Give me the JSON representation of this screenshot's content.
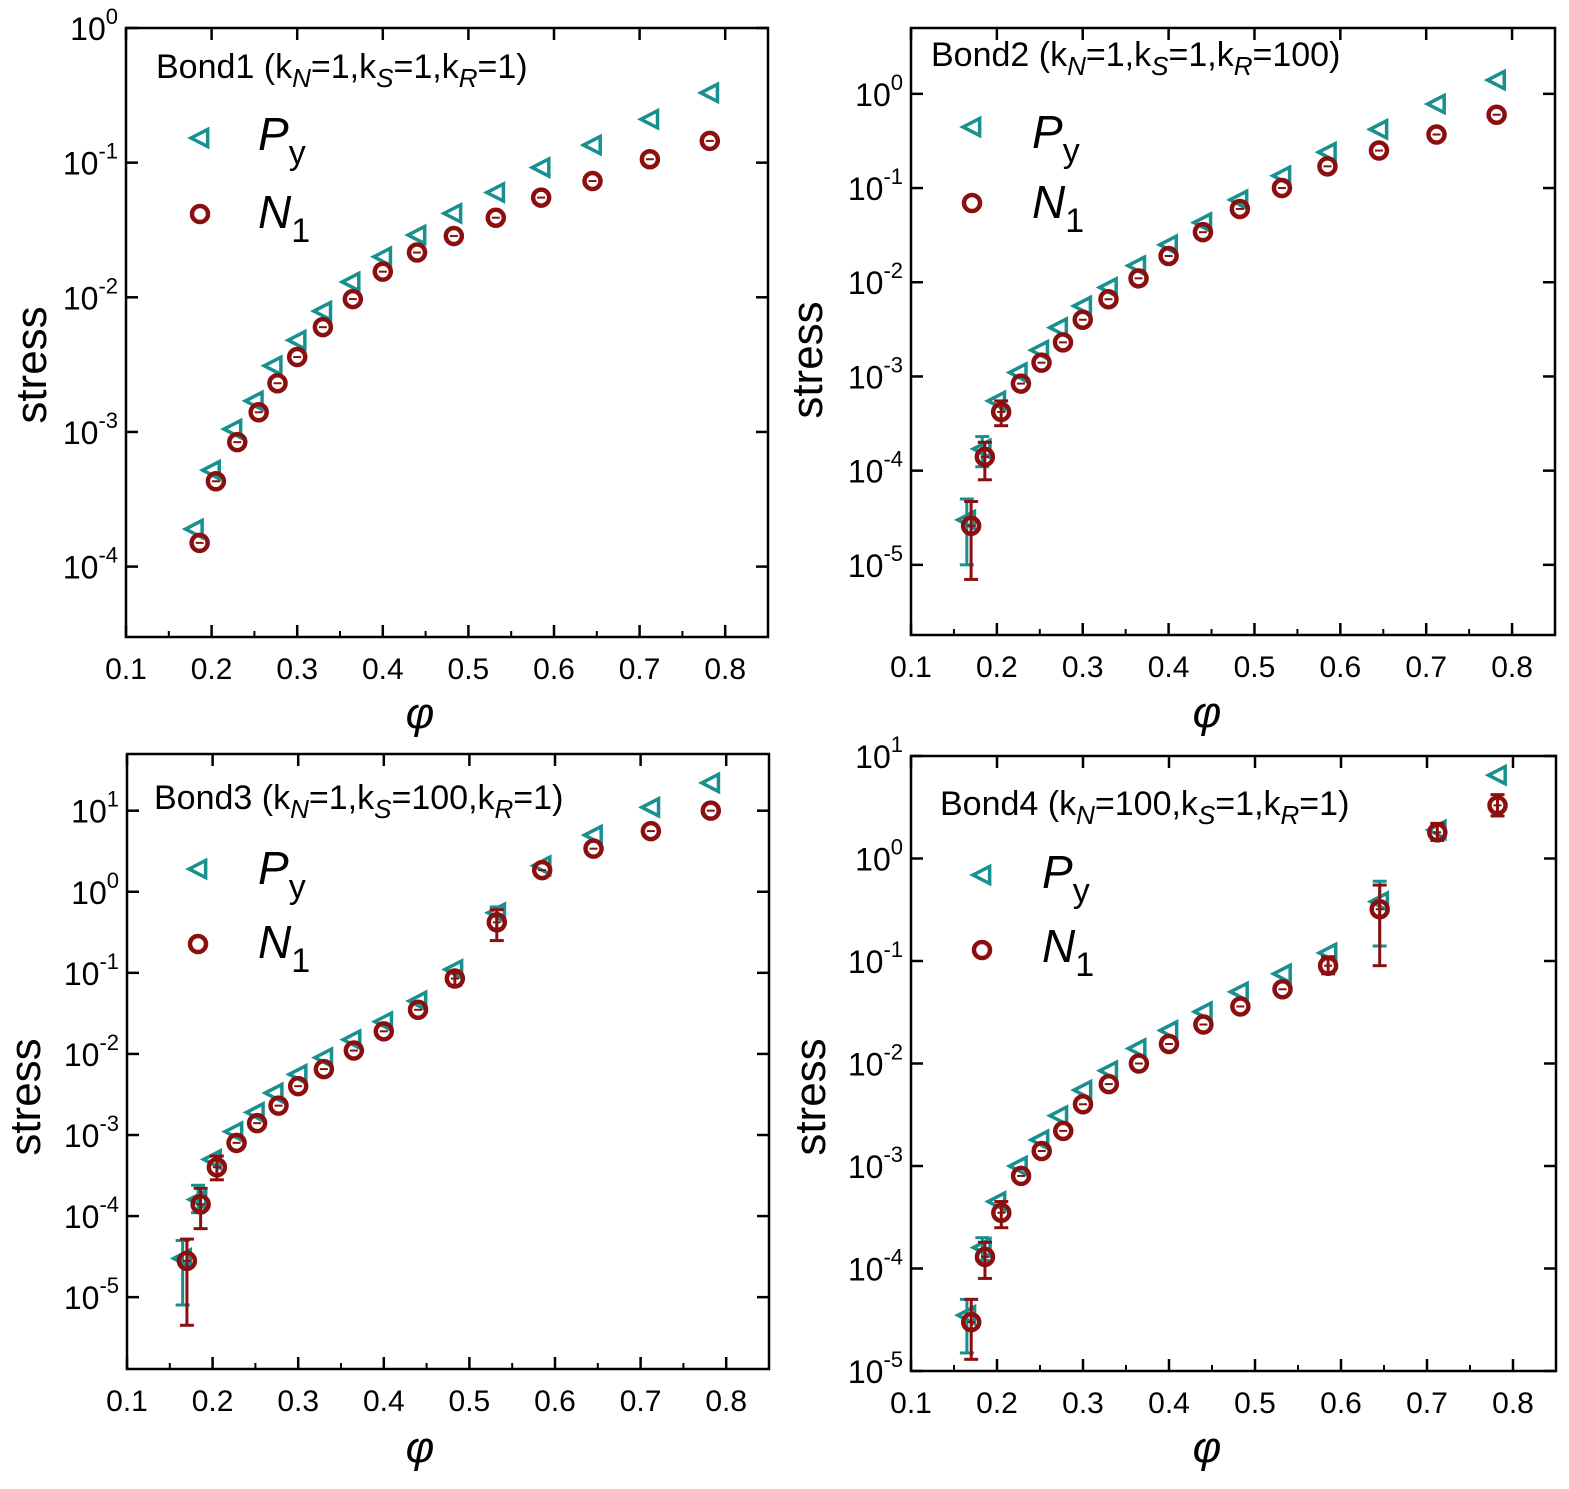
{
  "figure": {
    "colors": {
      "py": "#17908f",
      "n1": "#8b0f0f",
      "axis": "#000000"
    }
  },
  "chart_data": [
    {
      "type": "scatter",
      "id": "bond1",
      "title": "Bond1",
      "params": {
        "kN": "1",
        "kS": "1",
        "kR": "1"
      },
      "xlabel": "φ",
      "ylabel": "stress",
      "yscale": "log",
      "xlim": [
        0.1,
        0.85
      ],
      "ylim": [
        3e-05,
        1
      ],
      "xticks": [
        "0.1",
        "0.2",
        "0.3",
        "0.4",
        "0.5",
        "0.6",
        "0.7",
        "0.8"
      ],
      "yticks_exp": [
        "0",
        "-1",
        "-2",
        "-3",
        "-4"
      ],
      "legend_position": "top-left",
      "series": [
        {
          "name": "P",
          "sub": "y",
          "marker": "left-triangle",
          "x": [
            0.18,
            0.2,
            0.225,
            0.25,
            0.272,
            0.3,
            0.33,
            0.363,
            0.4,
            0.44,
            0.482,
            0.532,
            0.585,
            0.645,
            0.712,
            0.782
          ],
          "y": [
            0.00019,
            0.00052,
            0.00105,
            0.0017,
            0.0031,
            0.0048,
            0.0079,
            0.013,
            0.02,
            0.029,
            0.042,
            0.06,
            0.092,
            0.135,
            0.21,
            0.33
          ],
          "err": []
        },
        {
          "name": "N",
          "sub": "1",
          "marker": "open-circle",
          "x": [
            0.186,
            0.205,
            0.23,
            0.255,
            0.277,
            0.3,
            0.33,
            0.365,
            0.4,
            0.44,
            0.483,
            0.532,
            0.585,
            0.645,
            0.712,
            0.782
          ],
          "y": [
            0.00015,
            0.00043,
            0.00084,
            0.0014,
            0.0023,
            0.0036,
            0.006,
            0.0097,
            0.0155,
            0.0215,
            0.0285,
            0.039,
            0.055,
            0.073,
            0.106,
            0.145
          ],
          "err": []
        }
      ]
    },
    {
      "type": "scatter",
      "id": "bond2",
      "title": "Bond2",
      "params": {
        "kN": "1",
        "kS": "1",
        "kR": "100"
      },
      "xlabel": "φ",
      "ylabel": "stress",
      "yscale": "log",
      "xlim": [
        0.1,
        0.85
      ],
      "ylim": [
        1.8e-06,
        5
      ],
      "xticks": [
        "0.1",
        "0.2",
        "0.3",
        "0.4",
        "0.5",
        "0.6",
        "0.7",
        "0.8"
      ],
      "yticks_exp": [
        "0",
        "-1",
        "-2",
        "-3",
        "-4",
        "-5"
      ],
      "legend_position": "top-left",
      "series": [
        {
          "name": "P",
          "sub": "y",
          "marker": "left-triangle",
          "x": [
            0.165,
            0.183,
            0.2,
            0.225,
            0.25,
            0.272,
            0.3,
            0.33,
            0.363,
            0.4,
            0.44,
            0.482,
            0.532,
            0.585,
            0.645,
            0.712,
            0.782
          ],
          "y": [
            3e-05,
            0.00017,
            0.00055,
            0.0011,
            0.0019,
            0.0033,
            0.0056,
            0.0088,
            0.015,
            0.025,
            0.043,
            0.075,
            0.135,
            0.24,
            0.42,
            0.78,
            1.4
          ],
          "err": [
            [
              1e-05,
              5e-05
            ],
            [
              0.00011,
              0.00023
            ],
            null,
            null,
            null,
            null,
            null,
            null,
            null,
            null,
            null,
            null,
            null,
            null,
            null,
            null,
            null
          ]
        },
        {
          "name": "N",
          "sub": "1",
          "marker": "open-circle",
          "x": [
            0.17,
            0.186,
            0.205,
            0.228,
            0.252,
            0.277,
            0.3,
            0.33,
            0.365,
            0.4,
            0.44,
            0.483,
            0.532,
            0.585,
            0.645,
            0.712,
            0.782
          ],
          "y": [
            2.6e-05,
            0.00014,
            0.00042,
            0.00084,
            0.0014,
            0.0023,
            0.004,
            0.0066,
            0.011,
            0.019,
            0.034,
            0.06,
            0.1,
            0.17,
            0.25,
            0.37,
            0.6
          ],
          "err": [
            [
              7e-06,
              4.7e-05
            ],
            [
              8e-05,
              0.0002
            ],
            [
              0.0003,
              0.00055
            ],
            null,
            null,
            null,
            null,
            null,
            null,
            null,
            null,
            null,
            null,
            null,
            null,
            null,
            null
          ]
        }
      ]
    },
    {
      "type": "scatter",
      "id": "bond3",
      "title": "Bond3",
      "params": {
        "kN": "1",
        "kS": "100",
        "kR": "1"
      },
      "xlabel": "φ",
      "ylabel": "stress",
      "yscale": "log",
      "xlim": [
        0.1,
        0.85
      ],
      "ylim": [
        1.3e-06,
        50
      ],
      "xticks": [
        "0.1",
        "0.2",
        "0.3",
        "0.4",
        "0.5",
        "0.6",
        "0.7",
        "0.8"
      ],
      "yticks_exp": [
        "1",
        "0",
        "-1",
        "-2",
        "-3",
        "-4",
        "-5"
      ],
      "legend_position": "top-left",
      "series": [
        {
          "name": "P",
          "sub": "y",
          "marker": "left-triangle",
          "x": [
            0.165,
            0.183,
            0.2,
            0.225,
            0.25,
            0.272,
            0.3,
            0.33,
            0.363,
            0.4,
            0.44,
            0.482,
            0.532,
            0.585,
            0.645,
            0.712,
            0.782
          ],
          "y": [
            3e-05,
            0.00016,
            0.0005,
            0.0011,
            0.0019,
            0.0033,
            0.0056,
            0.009,
            0.015,
            0.025,
            0.045,
            0.11,
            0.55,
            2.1,
            5.0,
            11,
            22
          ],
          "err": [
            [
              8e-06,
              5e-05
            ],
            [
              0.00011,
              0.00024
            ],
            null,
            null,
            null,
            null,
            null,
            null,
            null,
            null,
            null,
            null,
            [
              0.35,
              0.65
            ],
            null,
            null,
            null,
            null
          ]
        },
        {
          "name": "N",
          "sub": "1",
          "marker": "open-circle",
          "x": [
            0.17,
            0.186,
            0.205,
            0.228,
            0.252,
            0.277,
            0.3,
            0.33,
            0.365,
            0.4,
            0.44,
            0.483,
            0.532,
            0.585,
            0.645,
            0.712,
            0.782
          ],
          "y": [
            2.8e-05,
            0.00014,
            0.0004,
            0.0008,
            0.0014,
            0.0023,
            0.004,
            0.0065,
            0.011,
            0.019,
            0.035,
            0.085,
            0.42,
            1.85,
            3.4,
            5.6,
            10
          ],
          "err": [
            [
              4.5e-06,
              5.2e-05
            ],
            [
              7e-05,
              0.00022
            ],
            [
              0.00028,
              0.00055
            ],
            null,
            null,
            null,
            null,
            null,
            null,
            null,
            null,
            [
              0.07,
              0.1
            ],
            [
              0.25,
              0.6
            ],
            null,
            null,
            null,
            null
          ]
        }
      ]
    },
    {
      "type": "scatter",
      "id": "bond4",
      "title": "Bond4",
      "params": {
        "kN": "100",
        "kS": "1",
        "kR": "1"
      },
      "xlabel": "φ",
      "ylabel": "stress",
      "yscale": "log",
      "xlim": [
        0.1,
        0.85
      ],
      "ylim": [
        1e-05,
        10
      ],
      "xticks": [
        "0.1",
        "0.2",
        "0.3",
        "0.4",
        "0.5",
        "0.6",
        "0.7",
        "0.8"
      ],
      "yticks_exp": [
        "1",
        "0",
        "-1",
        "-2",
        "-3",
        "-4",
        "-5"
      ],
      "legend_position": "top-left",
      "series": [
        {
          "name": "P",
          "sub": "y",
          "marker": "left-triangle",
          "x": [
            0.165,
            0.183,
            0.2,
            0.225,
            0.25,
            0.272,
            0.3,
            0.33,
            0.363,
            0.4,
            0.44,
            0.482,
            0.532,
            0.585,
            0.645,
            0.712,
            0.782
          ],
          "y": [
            3.5e-05,
            0.00016,
            0.00045,
            0.001,
            0.0018,
            0.0031,
            0.0055,
            0.0085,
            0.014,
            0.021,
            0.032,
            0.05,
            0.075,
            0.12,
            0.38,
            1.9,
            6.5
          ],
          "err": [
            [
              1.5e-05,
              5e-05
            ],
            [
              0.00012,
              0.0002
            ],
            null,
            null,
            null,
            null,
            null,
            null,
            null,
            null,
            null,
            null,
            null,
            null,
            [
              0.14,
              0.6
            ],
            null,
            null
          ]
        },
        {
          "name": "N",
          "sub": "1",
          "marker": "open-circle",
          "x": [
            0.17,
            0.186,
            0.205,
            0.228,
            0.252,
            0.277,
            0.3,
            0.33,
            0.365,
            0.4,
            0.44,
            0.483,
            0.532,
            0.585,
            0.645,
            0.712,
            0.782
          ],
          "y": [
            3e-05,
            0.00013,
            0.00035,
            0.0008,
            0.0014,
            0.0022,
            0.004,
            0.0063,
            0.01,
            0.0155,
            0.024,
            0.036,
            0.053,
            0.09,
            0.32,
            1.8,
            3.3
          ],
          "err": [
            [
              1.3e-05,
              5e-05
            ],
            [
              8e-05,
              0.00018
            ],
            [
              0.00025,
              0.00045
            ],
            null,
            null,
            null,
            null,
            null,
            null,
            null,
            null,
            null,
            null,
            [
              0.075,
              0.11
            ],
            [
              0.09,
              0.55
            ],
            [
              1.5,
              2.2
            ],
            [
              2.6,
              4.2
            ]
          ]
        }
      ]
    }
  ]
}
